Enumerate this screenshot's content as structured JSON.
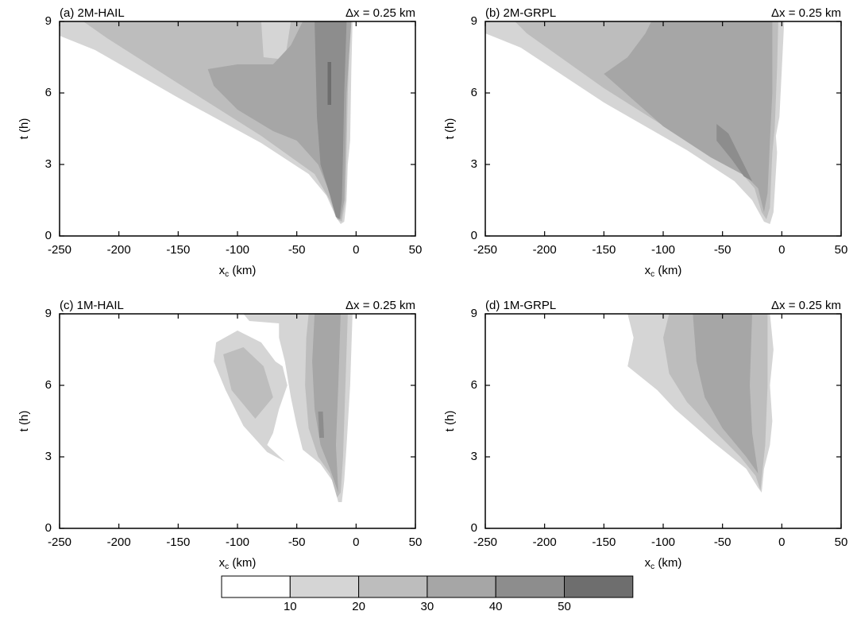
{
  "chart_data": [
    {
      "type": "contour",
      "title": "(a) 2M-HAIL",
      "annotation": "Δx = 0.25 km",
      "xlabel": [
        "x",
        "c",
        " (km)"
      ],
      "ylabel": "t (h)",
      "xlim": [
        -250,
        50
      ],
      "xticks": [
        -250,
        -200,
        -150,
        -100,
        -50,
        0,
        50
      ],
      "ylim": [
        0,
        9
      ],
      "yticks": [
        0,
        3,
        6,
        9
      ],
      "contours": [
        {
          "level": 10,
          "points": [
            [
              -250,
              9
            ],
            [
              -3,
              9
            ],
            [
              -4,
              7
            ],
            [
              -5,
              4
            ],
            [
              -7,
              3
            ],
            [
              -8,
              1.5
            ],
            [
              -10,
              0.6
            ],
            [
              -13,
              0.5
            ],
            [
              -17,
              0.8
            ],
            [
              -25,
              1.7
            ],
            [
              -40,
              2.6
            ],
            [
              -80,
              3.9
            ],
            [
              -150,
              5.8
            ],
            [
              -220,
              7.8
            ],
            [
              -250,
              8.4
            ]
          ]
        },
        {
          "level": 20,
          "points": [
            [
              -240,
              9
            ],
            [
              -80,
              9
            ],
            [
              -78,
              7.5
            ],
            [
              -60,
              7.4
            ],
            [
              -55,
              9
            ],
            [
              -5,
              9
            ],
            [
              -7,
              6
            ],
            [
              -8,
              3.5
            ],
            [
              -9,
              1.5
            ],
            [
              -12,
              0.6
            ],
            [
              -16,
              0.7
            ],
            [
              -22,
              1.5
            ],
            [
              -35,
              2.6
            ],
            [
              -80,
              4.2
            ],
            [
              -150,
              6.4
            ],
            [
              -210,
              8.3
            ],
            [
              -230,
              9
            ]
          ]
        },
        {
          "level": 30,
          "points": [
            [
              -45,
              9
            ],
            [
              -4,
              9
            ],
            [
              -8,
              6
            ],
            [
              -9,
              3.5
            ],
            [
              -10,
              1.5
            ],
            [
              -13,
              0.7
            ],
            [
              -17,
              0.8
            ],
            [
              -22,
              1.8
            ],
            [
              -32,
              3
            ],
            [
              -50,
              4
            ],
            [
              -70,
              4.4
            ],
            [
              -100,
              5.3
            ],
            [
              -120,
              6.3
            ],
            [
              -125,
              7
            ],
            [
              -100,
              7.2
            ],
            [
              -70,
              7.2
            ],
            [
              -55,
              8
            ]
          ]
        },
        {
          "level": 40,
          "points": [
            [
              -35,
              9
            ],
            [
              -8,
              9
            ],
            [
              -10,
              6
            ],
            [
              -11,
              3.5
            ],
            [
              -12,
              1.5
            ],
            [
              -14,
              0.7
            ],
            [
              -17,
              0.8
            ],
            [
              -22,
              1.7
            ],
            [
              -30,
              3
            ],
            [
              -33,
              5
            ],
            [
              -34,
              7
            ]
          ]
        },
        {
          "level": 50,
          "points": [
            [
              -24,
              7.3
            ],
            [
              -21,
              7.3
            ],
            [
              -21,
              5.5
            ],
            [
              -24,
              5.5
            ]
          ]
        }
      ]
    },
    {
      "type": "contour",
      "title": "(b) 2M-GRPL",
      "annotation": "Δx = 0.25 km",
      "xlabel": [
        "x",
        "c",
        " (km)"
      ],
      "ylabel": "t (h)",
      "xlim": [
        -250,
        50
      ],
      "xticks": [
        -250,
        -200,
        -150,
        -100,
        -50,
        0,
        50
      ],
      "ylim": [
        0,
        9
      ],
      "yticks": [
        0,
        3,
        6,
        9
      ],
      "contours": [
        {
          "level": 10,
          "points": [
            [
              -250,
              9
            ],
            [
              2,
              9
            ],
            [
              0,
              7
            ],
            [
              -2,
              5
            ],
            [
              -5,
              4.2
            ],
            [
              -4,
              3.5
            ],
            [
              -7,
              1
            ],
            [
              -10,
              0.5
            ],
            [
              -15,
              0.6
            ],
            [
              -25,
              1.5
            ],
            [
              -40,
              2.3
            ],
            [
              -80,
              3.6
            ],
            [
              -150,
              5.6
            ],
            [
              -220,
              7.9
            ],
            [
              -250,
              8.5
            ]
          ]
        },
        {
          "level": 20,
          "points": [
            [
              -235,
              9
            ],
            [
              -3,
              9
            ],
            [
              -4,
              7
            ],
            [
              -6,
              4.5
            ],
            [
              -8,
              3.5
            ],
            [
              -10,
              1.2
            ],
            [
              -13,
              0.7
            ],
            [
              -17,
              1
            ],
            [
              -23,
              2
            ],
            [
              -35,
              2.7
            ],
            [
              -80,
              4
            ],
            [
              -150,
              6.2
            ],
            [
              -215,
              8.5
            ],
            [
              -225,
              9
            ]
          ]
        },
        {
          "level": 30,
          "points": [
            [
              -110,
              9
            ],
            [
              -8,
              9
            ],
            [
              -8,
              6
            ],
            [
              -10,
              4
            ],
            [
              -12,
              1.8
            ],
            [
              -15,
              1
            ],
            [
              -20,
              2
            ],
            [
              -30,
              2.5
            ],
            [
              -60,
              3.3
            ],
            [
              -100,
              4.6
            ],
            [
              -150,
              6.8
            ],
            [
              -130,
              7.5
            ],
            [
              -115,
              8.5
            ]
          ]
        },
        {
          "level": 40,
          "points": [
            [
              -55,
              4.7
            ],
            [
              -45,
              4.3
            ],
            [
              -28,
              2.6
            ],
            [
              -25,
              2.3
            ],
            [
              -32,
              2.5
            ],
            [
              -42,
              3.2
            ],
            [
              -55,
              4
            ]
          ]
        }
      ]
    },
    {
      "type": "contour",
      "title": "(c) 1M-HAIL",
      "annotation": "Δx = 0.25 km",
      "xlabel": [
        "x",
        "c",
        " (km)"
      ],
      "ylabel": "t (h)",
      "xlim": [
        -250,
        50
      ],
      "xticks": [
        -250,
        -200,
        -150,
        -100,
        -50,
        0,
        50
      ],
      "ylim": [
        0,
        9
      ],
      "yticks": [
        0,
        3,
        6,
        9
      ],
      "contours": [
        {
          "level": 10,
          "points": [
            [
              -118,
              7.8
            ],
            [
              -100,
              8.3
            ],
            [
              -80,
              7.8
            ],
            [
              -68,
              7
            ],
            [
              -62,
              6.8
            ],
            [
              -58,
              6
            ],
            [
              -65,
              5
            ],
            [
              -70,
              4
            ],
            [
              -75,
              3.5
            ],
            [
              -60,
              2.8
            ],
            [
              -75,
              3.2
            ],
            [
              -95,
              4.3
            ],
            [
              -110,
              5.8
            ],
            [
              -120,
              7
            ]
          ]
        },
        {
          "level": 10,
          "points": [
            [
              -65,
              9
            ],
            [
              -3,
              9
            ],
            [
              -5,
              6
            ],
            [
              -8,
              3.5
            ],
            [
              -10,
              2
            ],
            [
              -12,
              1.1
            ],
            [
              -15,
              1.1
            ],
            [
              -20,
              2
            ],
            [
              -30,
              2.7
            ],
            [
              -45,
              3.3
            ],
            [
              -50,
              4.3
            ],
            [
              -55,
              5.5
            ],
            [
              -60,
              7
            ],
            [
              -65,
              8
            ]
          ]
        },
        {
          "level": 10,
          "points": [
            [
              -95,
              9
            ],
            [
              -60,
              9
            ],
            [
              -65,
              8.6
            ],
            [
              -90,
              8.7
            ]
          ]
        },
        {
          "level": 20,
          "points": [
            [
              -112,
              7.3
            ],
            [
              -95,
              7.6
            ],
            [
              -78,
              6.8
            ],
            [
              -70,
              5.5
            ],
            [
              -85,
              4.6
            ],
            [
              -105,
              5.8
            ]
          ]
        },
        {
          "level": 20,
          "points": [
            [
              -40,
              9
            ],
            [
              -7,
              9
            ],
            [
              -9,
              6
            ],
            [
              -11,
              3
            ],
            [
              -13,
              1.5
            ],
            [
              -16,
              1.3
            ],
            [
              -22,
              2.3
            ],
            [
              -32,
              3
            ],
            [
              -40,
              4.2
            ],
            [
              -43,
              6
            ],
            [
              -42,
              8
            ]
          ]
        },
        {
          "level": 30,
          "points": [
            [
              -35,
              9
            ],
            [
              -13,
              9
            ],
            [
              -15,
              6
            ],
            [
              -17,
              3.5
            ],
            [
              -15,
              1.5
            ],
            [
              -22,
              2.5
            ],
            [
              -30,
              3.5
            ],
            [
              -35,
              5
            ],
            [
              -37,
              7
            ]
          ]
        },
        {
          "level": 40,
          "points": [
            [
              -32,
              4.9
            ],
            [
              -28,
              4.9
            ],
            [
              -27,
              3.8
            ],
            [
              -31,
              3.8
            ]
          ]
        }
      ]
    },
    {
      "type": "contour",
      "title": "(d) 1M-GRPL",
      "annotation": "Δx = 0.25 km",
      "xlabel": [
        "x",
        "c",
        " (km)"
      ],
      "ylabel": "t (h)",
      "xlim": [
        -250,
        50
      ],
      "xticks": [
        -250,
        -200,
        -150,
        -100,
        -50,
        0,
        50
      ],
      "ylim": [
        0,
        9
      ],
      "yticks": [
        0,
        3,
        6,
        9
      ],
      "contours": [
        {
          "level": 10,
          "points": [
            [
              -130,
              9
            ],
            [
              -10,
              9
            ],
            [
              -7,
              7.5
            ],
            [
              -10,
              6
            ],
            [
              -8,
              4.5
            ],
            [
              -10,
              3.5
            ],
            [
              -15,
              2.5
            ],
            [
              -17,
              1.5
            ],
            [
              -20,
              1.7
            ],
            [
              -30,
              2.5
            ],
            [
              -60,
              3.7
            ],
            [
              -90,
              5
            ],
            [
              -105,
              5.8
            ],
            [
              -110,
              6
            ],
            [
              -130,
              6.8
            ],
            [
              -125,
              8
            ]
          ]
        },
        {
          "level": 20,
          "points": [
            [
              -95,
              9
            ],
            [
              -12,
              9
            ],
            [
              -12,
              6
            ],
            [
              -14,
              3.5
            ],
            [
              -18,
              1.6
            ],
            [
              -22,
              2.2
            ],
            [
              -35,
              3
            ],
            [
              -55,
              4
            ],
            [
              -80,
              5.3
            ],
            [
              -95,
              6.5
            ],
            [
              -100,
              8
            ]
          ]
        },
        {
          "level": 30,
          "points": [
            [
              -75,
              9
            ],
            [
              -25,
              9
            ],
            [
              -27,
              6
            ],
            [
              -25,
              4
            ],
            [
              -20,
              2.3
            ],
            [
              -30,
              3
            ],
            [
              -50,
              4.2
            ],
            [
              -65,
              5.5
            ],
            [
              -72,
              7
            ]
          ]
        }
      ]
    },
    {
      "type": "colorbar",
      "levels": [
        10,
        20,
        30,
        40,
        50
      ],
      "colors": [
        "#ffffff",
        "#d5d5d5",
        "#bdbdbd",
        "#a6a6a6",
        "#8d8d8d",
        "#6e6e6e"
      ]
    }
  ]
}
